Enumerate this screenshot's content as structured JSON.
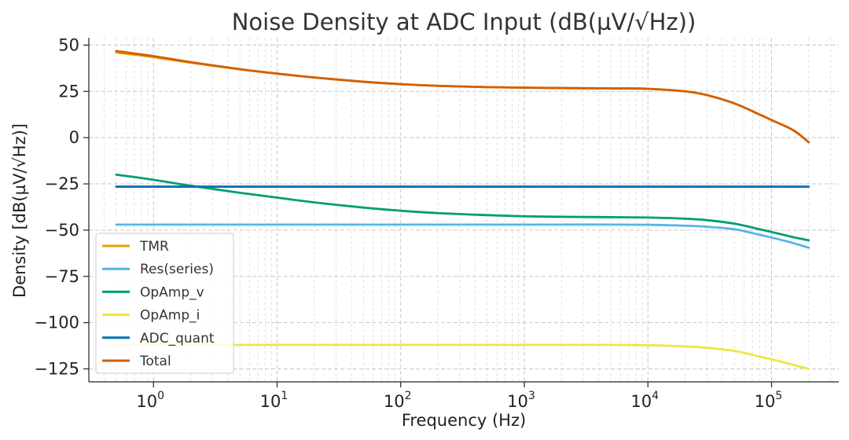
{
  "chart_data": {
    "type": "line",
    "title": "Noise Density at ADC Input (dB(µV/√Hz))",
    "xlabel": "Frequency (Hz)",
    "ylabel": "Density [dB(µV/√Hz)]",
    "xscale": "log",
    "xlim": [
      0.3,
      350000
    ],
    "ylim": [
      -132,
      54
    ],
    "yticks": [
      50,
      25,
      0,
      -25,
      -50,
      -75,
      -100,
      -125
    ],
    "ytick_labels": [
      "50",
      "25",
      "0",
      "−25",
      "−50",
      "−75",
      "−100",
      "−125"
    ],
    "xticks": [
      {
        "value": 1,
        "base": "10",
        "exp": "0"
      },
      {
        "value": 10,
        "base": "10",
        "exp": "1"
      },
      {
        "value": 100,
        "base": "10",
        "exp": "2"
      },
      {
        "value": 1000,
        "base": "10",
        "exp": "3"
      },
      {
        "value": 10000,
        "base": "10",
        "exp": "4"
      },
      {
        "value": 100000,
        "base": "10",
        "exp": "5"
      }
    ],
    "grid": true,
    "legend_position": "lower-left",
    "x": [
      0.5,
      1,
      2,
      5,
      10,
      20,
      50,
      100,
      200,
      500,
      1000,
      2000,
      5000,
      10000,
      20000,
      30000,
      50000,
      80000,
      100000,
      150000,
      200000
    ],
    "series": [
      {
        "name": "TMR",
        "color": "#E69F00",
        "values": [
          46.0,
          43.5,
          40.5,
          36.9,
          34.6,
          32.5,
          30.2,
          28.9,
          28.0,
          27.3,
          27.0,
          26.8,
          26.6,
          26.4,
          25.0,
          23.0,
          18.5,
          12.5,
          9.5,
          4.0,
          -2.5
        ]
      },
      {
        "name": "Res(series)",
        "color": "#56B4E9",
        "values": [
          -47.0,
          -47.0,
          -47.0,
          -47.0,
          -47.0,
          -47.0,
          -47.0,
          -47.0,
          -47.0,
          -47.0,
          -47.0,
          -47.0,
          -47.0,
          -47.1,
          -47.6,
          -48.2,
          -49.5,
          -52.5,
          -54.0,
          -57.0,
          -59.5
        ]
      },
      {
        "name": "OpAmp_v",
        "color": "#009E73",
        "values": [
          -20.0,
          -22.8,
          -26.0,
          -29.8,
          -32.4,
          -35.0,
          -37.8,
          -39.5,
          -40.8,
          -41.9,
          -42.5,
          -42.8,
          -43.0,
          -43.2,
          -43.8,
          -44.6,
          -46.5,
          -49.5,
          -51.0,
          -53.8,
          -55.5
        ]
      },
      {
        "name": "OpAmp_i",
        "color": "#F0E442",
        "values": [
          -112.0,
          -112.0,
          -112.0,
          -112.0,
          -112.0,
          -112.0,
          -112.0,
          -112.0,
          -112.0,
          -112.0,
          -112.0,
          -112.0,
          -112.0,
          -112.2,
          -112.8,
          -113.6,
          -115.3,
          -118.3,
          -119.8,
          -122.8,
          -125.0
        ]
      },
      {
        "name": "ADC_quant",
        "color": "#0072B2",
        "values": [
          -26.5,
          -26.5,
          -26.5,
          -26.5,
          -26.5,
          -26.5,
          -26.5,
          -26.5,
          -26.5,
          -26.5,
          -26.5,
          -26.5,
          -26.5,
          -26.5,
          -26.5,
          -26.5,
          -26.5,
          -26.5,
          -26.5,
          -26.5,
          -26.5
        ]
      },
      {
        "name": "Total",
        "color": "#D55E00",
        "values": [
          46.8,
          44.0,
          40.8,
          37.0,
          34.6,
          32.5,
          30.2,
          28.9,
          28.0,
          27.3,
          27.0,
          26.8,
          26.6,
          26.4,
          25.0,
          23.0,
          18.5,
          12.5,
          9.5,
          4.0,
          -2.5
        ]
      }
    ]
  }
}
